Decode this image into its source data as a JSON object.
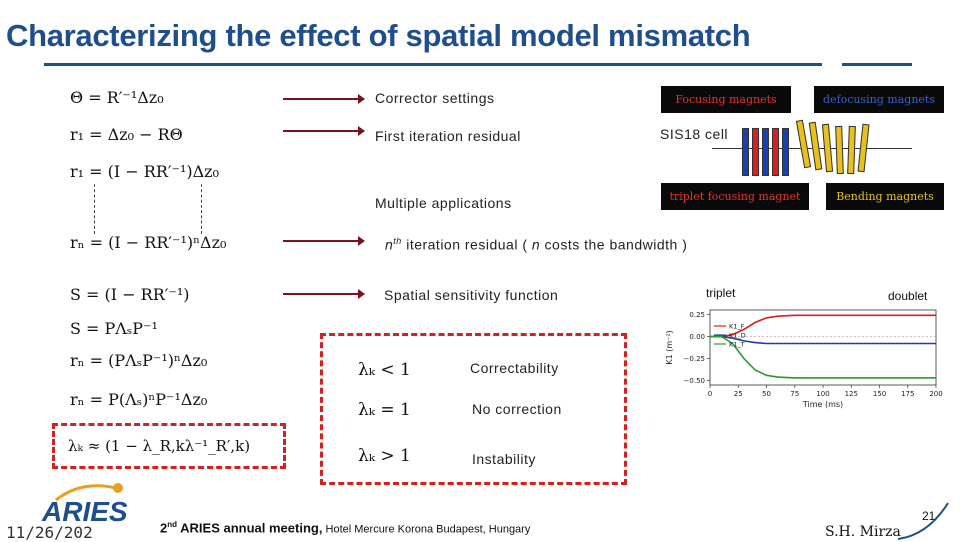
{
  "title": "Characterizing the effect of spatial model mismatch",
  "equations": [
    {
      "id": "theta",
      "text": "Θ = R′⁻¹Δz₀"
    },
    {
      "id": "r1",
      "text": "r₁ = Δz₀ − RΘ"
    },
    {
      "id": "r1-alt",
      "text": "r₁ = (I − RR′⁻¹)Δz₀"
    },
    {
      "id": "rn",
      "text": "rₙ = (I − RR′⁻¹)ⁿΔz₀"
    },
    {
      "id": "s",
      "text": "S = (I − RR′⁻¹)"
    },
    {
      "id": "s-decomp",
      "text": "S = PΛₛP⁻¹"
    },
    {
      "id": "rn-decomp",
      "text": "rₙ = (PΛₛP⁻¹)ⁿΔz₀"
    },
    {
      "id": "rn-power",
      "text": "rₙ = P(Λₛ)ⁿP⁻¹Δz₀"
    },
    {
      "id": "lambda-approx",
      "text": "λₖ ≈ (1 − λ_R,kλ⁻¹_R′,k)"
    }
  ],
  "labels": {
    "corrector": "Corrector   settings",
    "first_residual": "First   iteration   residual",
    "multiple": "Multiple   applications",
    "nth_prefix": "n",
    "nth_sup": "th",
    "nth_rest": "  iteration   residual   ( ",
    "nth_n": "n",
    "nth_end": "  costs   the   bandwidth )",
    "spatial": "Spatial   sensitivity   function"
  },
  "lambda_cases": [
    {
      "condition": "λₖ < 1",
      "meaning": "Correctability"
    },
    {
      "condition": "λₖ = 1",
      "meaning": "No   correction"
    },
    {
      "condition": "λₖ > 1",
      "meaning": "Instability"
    }
  ],
  "magnet_boxes": {
    "focusing": "Focusing magnets",
    "defocusing": "defocusing magnets",
    "triplet_focusing": "triplet focusing magnet",
    "bending": "Bending magnets",
    "cell": "SIS18   cell"
  },
  "plot_labels": {
    "triplet": "triplet",
    "doublet": "doublet"
  },
  "chart_data": {
    "type": "line",
    "xlabel": "Time (ms)",
    "ylabel": "K1 (m⁻²)",
    "xlim": [
      0,
      200
    ],
    "ylim": [
      -0.55,
      0.3
    ],
    "x_ticks": [
      "0",
      "25",
      "50",
      "75",
      "100",
      "125",
      "150",
      "175",
      "200"
    ],
    "y_ticks": [
      "0.25",
      "0.00",
      "−0.25",
      "−0.50"
    ],
    "legend": [
      "K1_F",
      "K1_D",
      "K1_T"
    ],
    "series": [
      {
        "name": "K1_F",
        "color": "#d42020",
        "x": [
          0,
          10,
          20,
          30,
          40,
          50,
          60,
          75,
          100,
          150,
          200
        ],
        "y": [
          0.0,
          0.0,
          0.02,
          0.08,
          0.16,
          0.21,
          0.23,
          0.24,
          0.24,
          0.24,
          0.24
        ]
      },
      {
        "name": "K1_D",
        "color": "#1f3fa0",
        "x": [
          0,
          10,
          20,
          30,
          40,
          50,
          60,
          75,
          100,
          150,
          200
        ],
        "y": [
          0.0,
          0.0,
          -0.02,
          -0.05,
          -0.07,
          -0.08,
          -0.08,
          -0.08,
          -0.08,
          -0.08,
          -0.08
        ]
      },
      {
        "name": "K1_T",
        "color": "#2a9a30",
        "x": [
          0,
          10,
          20,
          30,
          40,
          50,
          60,
          75,
          100,
          150,
          200
        ],
        "y": [
          0.0,
          0.0,
          -0.08,
          -0.25,
          -0.38,
          -0.44,
          -0.46,
          -0.47,
          -0.47,
          -0.47,
          -0.47
        ]
      }
    ]
  },
  "footer": {
    "date": "11/26/202",
    "logo": "ARIES",
    "meeting_ord": "2",
    "meeting_sup": "nd",
    "meeting_bold": " ARIES annual meeting,",
    "meeting_rest": " Hotel Mercure Korona Budapest, Hungary",
    "author": "S.H. Mirza",
    "page": "21"
  }
}
